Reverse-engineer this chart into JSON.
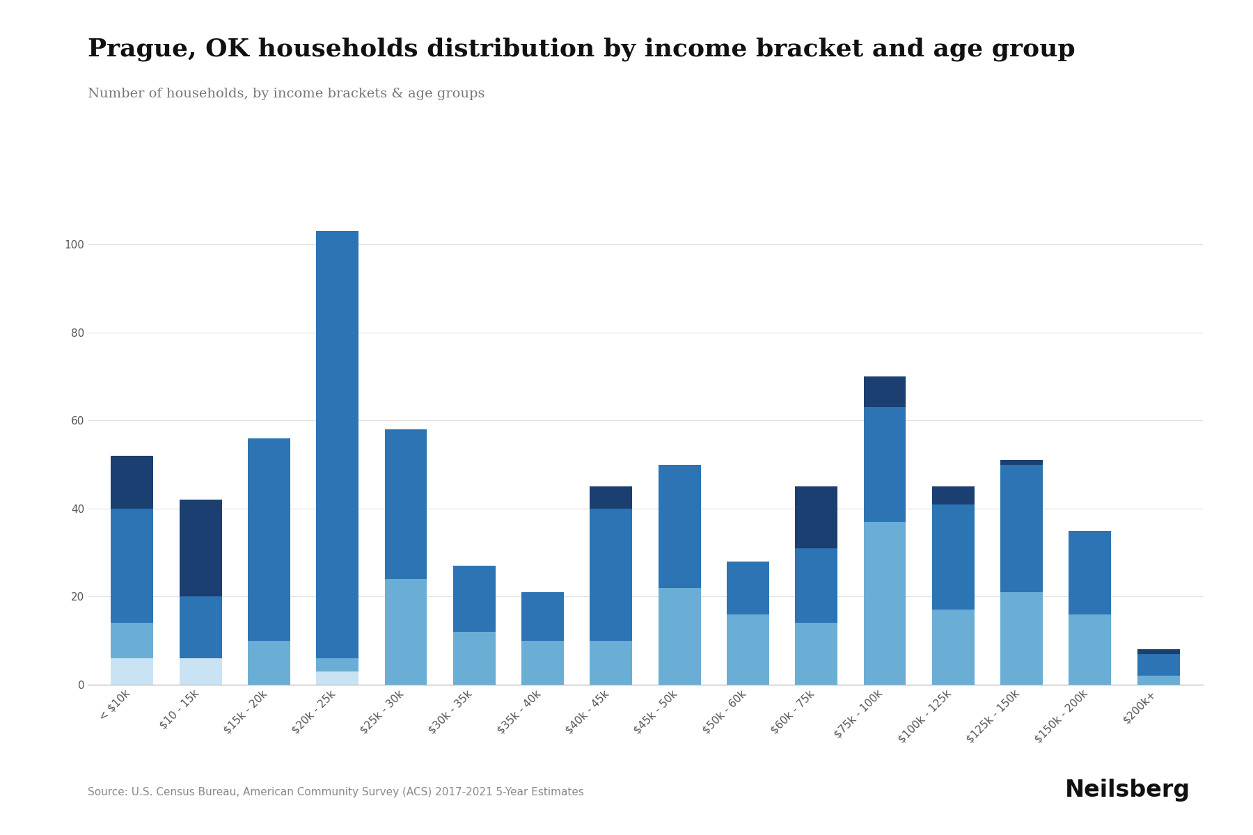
{
  "title": "Prague, OK households distribution by income bracket and age group",
  "subtitle": "Number of households, by income brackets & age groups",
  "source": "Source: U.S. Census Bureau, American Community Survey (ACS) 2017-2021 5-Year Estimates",
  "categories": [
    "< $10k",
    "$10 - 15k",
    "$15k - 20k",
    "$20k - 25k",
    "$25k - 30k",
    "$30k - 35k",
    "$35k - 40k",
    "$40k - 45k",
    "$45k - 50k",
    "$50k - 60k",
    "$60k - 75k",
    "$75k - 100k",
    "$100k - 125k",
    "$125k - 150k",
    "$150k - 200k",
    "$200k+"
  ],
  "under25": [
    6,
    6,
    0,
    3,
    0,
    0,
    0,
    0,
    0,
    0,
    0,
    0,
    0,
    0,
    0,
    0
  ],
  "age25to44": [
    8,
    0,
    10,
    3,
    24,
    12,
    10,
    10,
    22,
    16,
    14,
    37,
    17,
    21,
    16,
    2
  ],
  "age45to64": [
    26,
    14,
    46,
    97,
    34,
    15,
    11,
    30,
    28,
    12,
    17,
    26,
    24,
    29,
    19,
    5
  ],
  "age65over": [
    12,
    22,
    0,
    0,
    0,
    0,
    0,
    5,
    0,
    0,
    14,
    7,
    4,
    1,
    0,
    1
  ],
  "colors": {
    "under25": "#c9e3f5",
    "age25to44": "#6aaed6",
    "age45to64": "#2c74b3",
    "age65over": "#1a3f70"
  },
  "ylim": [
    0,
    110
  ],
  "yticks": [
    0,
    20,
    40,
    60,
    80,
    100
  ],
  "background_color": "#ffffff",
  "title_fontsize": 26,
  "subtitle_fontsize": 14,
  "source_fontsize": 11,
  "tick_fontsize": 11
}
